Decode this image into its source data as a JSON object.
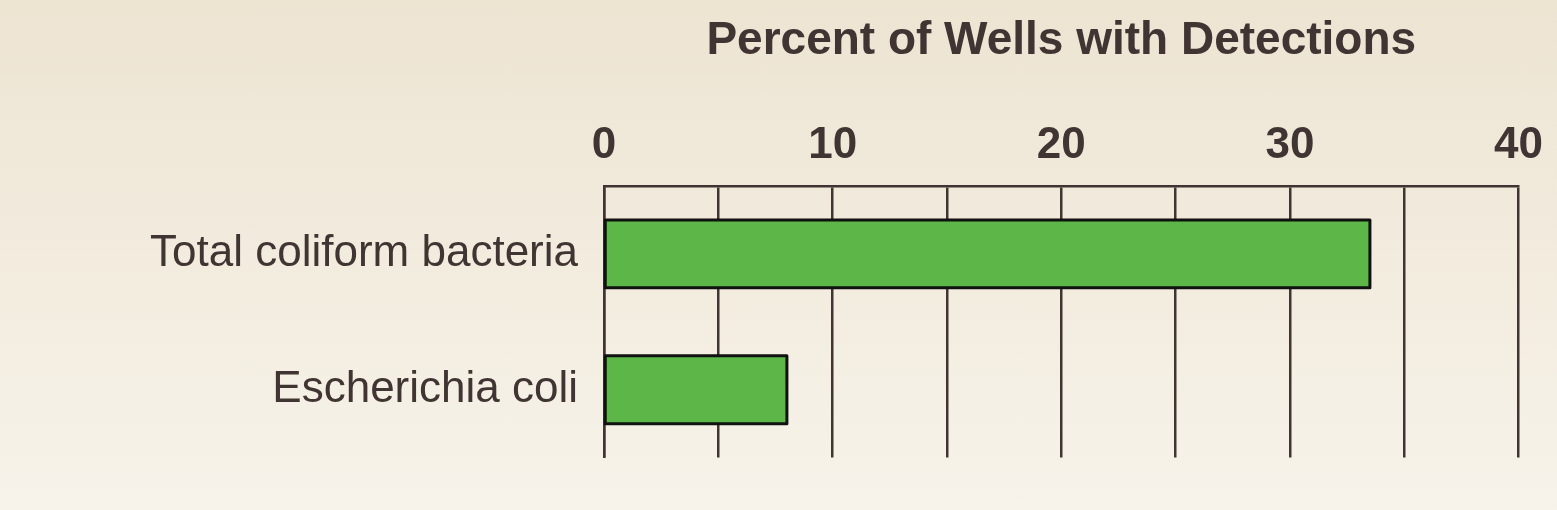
{
  "chart_data": {
    "type": "bar",
    "orientation": "horizontal",
    "xlabel": "Percent of Wells with Detections",
    "categories": [
      "Total coliform bacteria",
      "Escherichia coli"
    ],
    "values": [
      33.5,
      8
    ],
    "color": "#5cb648",
    "xlim": [
      0,
      40
    ],
    "xticks": [
      0,
      {
        "value": 5,
        "label": null
      },
      10,
      {
        "value": 15,
        "label": null
      },
      20,
      {
        "value": 25,
        "label": null
      },
      30,
      {
        "value": 35,
        "label": null
      },
      40
    ],
    "grid": "x",
    "legend": false
  }
}
